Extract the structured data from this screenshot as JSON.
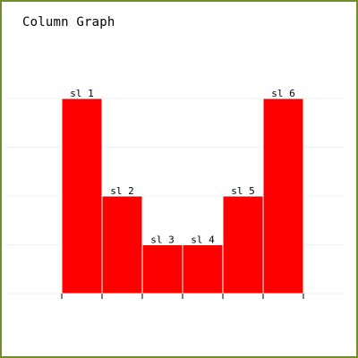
{
  "chart_data": {
    "type": "bar",
    "title": "Column Graph",
    "categories": [
      "sl 1",
      "sl 2",
      "sl 3",
      "sl 4",
      "sl 5",
      "sl 6"
    ],
    "values": [
      4,
      2,
      1,
      1,
      2,
      4
    ],
    "ylim": [
      0,
      4
    ],
    "grid": true,
    "colors": {
      "bar": "#ff0000",
      "bar_edge": "#ffffff",
      "grid": "#f0f0f0",
      "axis": "#000000",
      "frame": "#6f8f2a"
    }
  }
}
